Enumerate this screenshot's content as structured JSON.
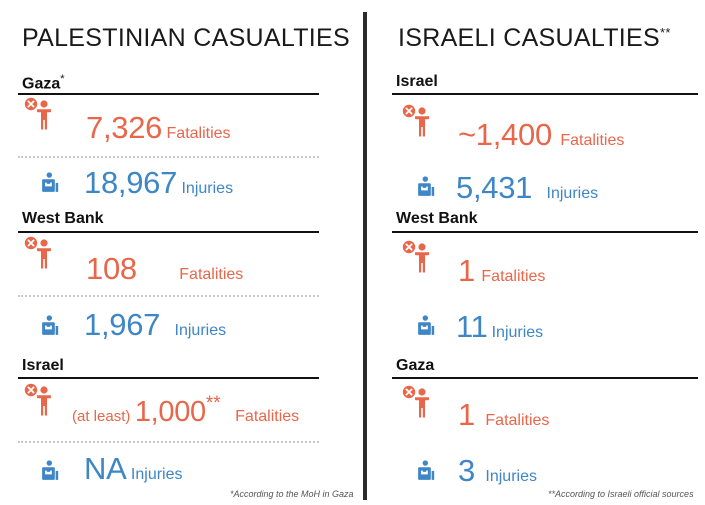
{
  "left": {
    "title": "PALESTINIAN CASUALTIES",
    "sections": [
      {
        "name": "Gaza",
        "mark": "*",
        "fatalities": "7,326",
        "fatalities_label": "Fatalities",
        "injuries": "18,967",
        "injuries_label": "Injuries"
      },
      {
        "name": "West Bank",
        "fatalities": "108",
        "fatalities_label": "Fatalities",
        "injuries": "1,967",
        "injuries_label": "Injuries"
      },
      {
        "name": "Israel",
        "fatalities_prefix": "(at least)",
        "fatalities": "1,000",
        "fatalities_mark": "**",
        "fatalities_label": "Fatalities",
        "injuries": "NA",
        "injuries_label": "Injuries"
      }
    ],
    "footnote": "*According to the MoH in Gaza"
  },
  "right": {
    "title": "ISRAELI CASUALTIES",
    "title_mark": "**",
    "sections": [
      {
        "name": "Israel",
        "fatalities": "~1,400",
        "fatalities_label": "Fatalities",
        "injuries": "5,431",
        "injuries_label": "Injuries"
      },
      {
        "name": "West Bank",
        "fatalities": "1",
        "fatalities_label": "Fatalities",
        "injuries": "11",
        "injuries_label": "Injuries"
      },
      {
        "name": "Gaza",
        "fatalities": "1",
        "fatalities_label": "Fatalities",
        "injuries": "3",
        "injuries_label": "Injuries"
      }
    ],
    "footnote": "**According to Israeli official sources"
  },
  "colors": {
    "fatalities": "#e8664a",
    "injuries": "#3f86c6",
    "text": "#111111"
  },
  "icons": {
    "fatality": "person-with-x-icon",
    "injury": "injured-person-icon"
  }
}
